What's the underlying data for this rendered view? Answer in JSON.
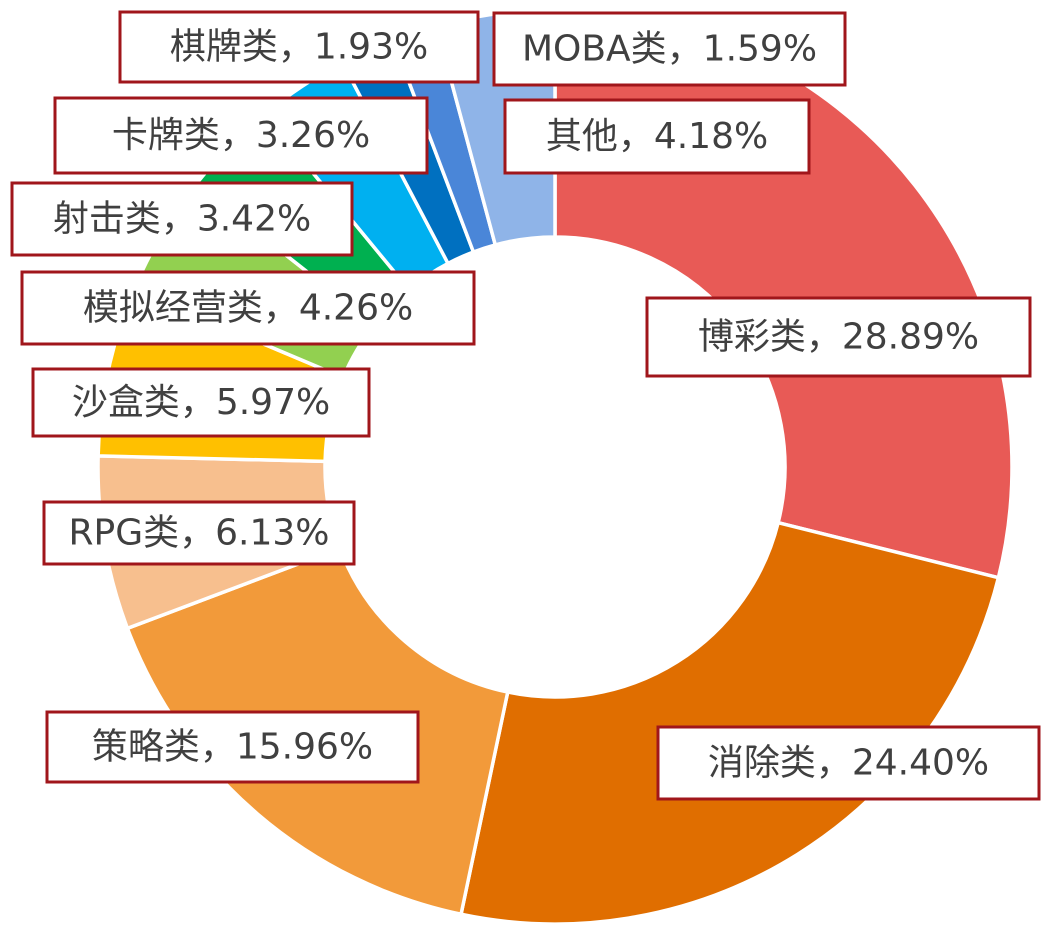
{
  "chart_data": {
    "type": "pie",
    "title": "",
    "donut": true,
    "order": "clockwise from top",
    "slices": [
      {
        "label": "博彩类",
        "value": 28.89,
        "display": "28.89%",
        "color": "#e85a56"
      },
      {
        "label": "消除类",
        "value": 24.4,
        "display": "24.40%",
        "color": "#e06e00"
      },
      {
        "label": "策略类",
        "value": 15.96,
        "display": "15.96%",
        "color": "#f29a3a"
      },
      {
        "label": "RPG类",
        "value": 6.13,
        "display": "6.13%",
        "color": "#f7bf8e"
      },
      {
        "label": "沙盒类",
        "value": 5.97,
        "display": "5.97%",
        "color": "#ffc000"
      },
      {
        "label": "模拟经营类",
        "value": 4.26,
        "display": "4.26%",
        "color": "#92d050"
      },
      {
        "label": "射击类",
        "value": 3.42,
        "display": "3.42%",
        "color": "#00b050"
      },
      {
        "label": "卡牌类",
        "value": 3.26,
        "display": "3.26%",
        "color": "#00b0f0"
      },
      {
        "label": "棋牌类",
        "value": 1.93,
        "display": "1.93%",
        "color": "#0070c0"
      },
      {
        "label": "MOBA类",
        "value": 1.59,
        "display": "1.59%",
        "color": "#4a86d8"
      },
      {
        "label": "其他",
        "value": 4.18,
        "display": "4.18%",
        "color": "#8fb4e8"
      }
    ],
    "label_separator": "，",
    "label_border_color": "#a0161b"
  }
}
